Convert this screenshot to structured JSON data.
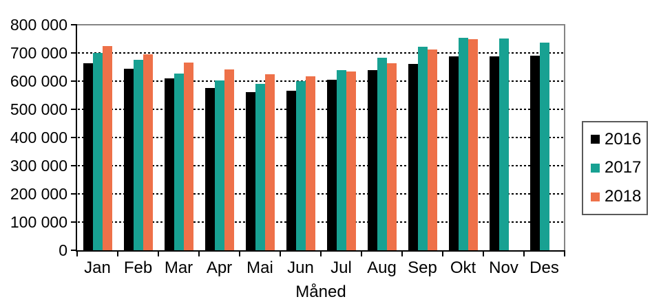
{
  "chart_data": {
    "type": "bar",
    "title": "",
    "xlabel": "Måned",
    "ylabel": "",
    "categories": [
      "Jan",
      "Feb",
      "Mar",
      "Apr",
      "Mai",
      "Jun",
      "Jul",
      "Aug",
      "Sep",
      "Okt",
      "Nov",
      "Des"
    ],
    "series": [
      {
        "name": "2016",
        "color": "#000000",
        "values": [
          663000,
          645000,
          610000,
          575000,
          561000,
          566000,
          605000,
          638000,
          662000,
          688000,
          688000,
          690000
        ]
      },
      {
        "name": "2017",
        "color": "#18A192",
        "values": [
          700000,
          676000,
          628000,
          603000,
          590000,
          600000,
          638000,
          683000,
          721000,
          754000,
          750000,
          736000
        ]
      },
      {
        "name": "2018",
        "color": "#EE7149",
        "values": [
          725000,
          695000,
          667000,
          641000,
          625000,
          618000,
          635000,
          664000,
          711000,
          748000,
          null,
          null
        ]
      }
    ],
    "ylim": [
      0,
      800000
    ],
    "ytick_step": 100000,
    "ytick_labels": [
      "0",
      "100 000",
      "200 000",
      "300 000",
      "400 000",
      "500 000",
      "600 000",
      "700 000",
      "800 000"
    ],
    "grid": "horizontal-dashed",
    "legend_position": "right"
  },
  "colors": {
    "background": "#ffffff",
    "axis": "#000000",
    "plot_border": "#848484",
    "gridline": "#000000",
    "legend_border": "#595959"
  }
}
